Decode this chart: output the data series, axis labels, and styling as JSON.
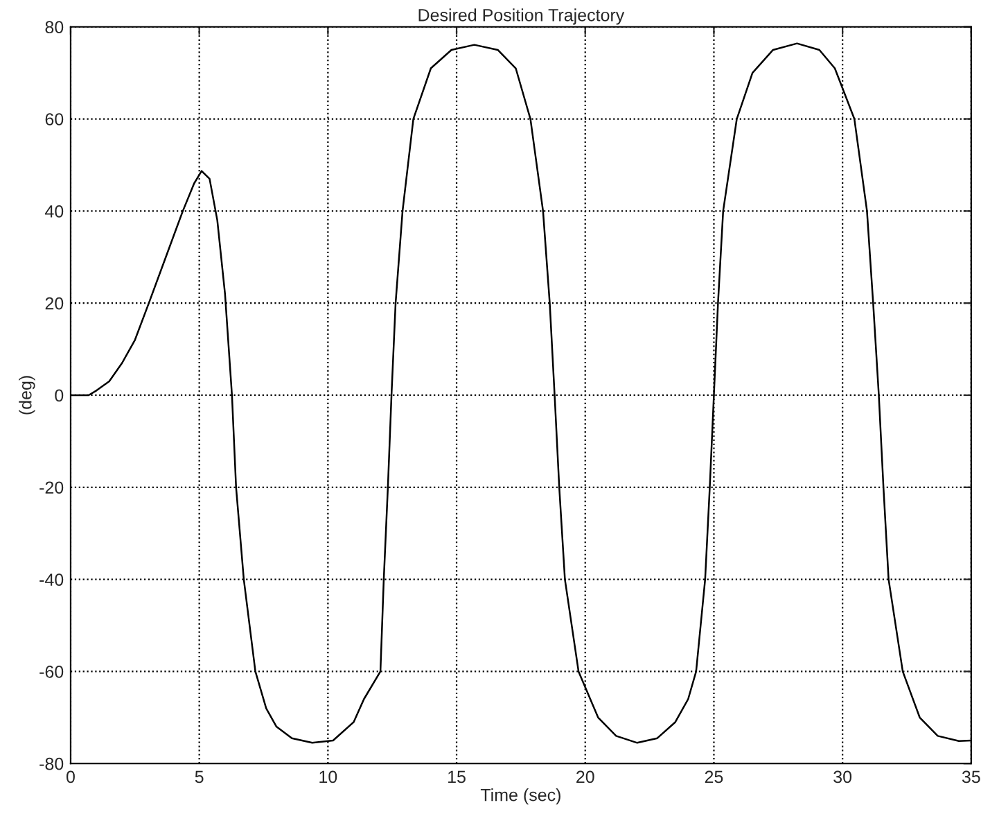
{
  "chart_data": {
    "type": "line",
    "title": "Desired Position Trajectory",
    "xlabel": "Time (sec)",
    "ylabel": "(deg)",
    "xlim": [
      0,
      35
    ],
    "xticks": [
      0,
      5,
      10,
      15,
      20,
      25,
      30,
      35
    ],
    "ylim": [
      -80,
      80
    ],
    "yticks": [
      -80,
      -60,
      -40,
      -20,
      0,
      20,
      40,
      60,
      80
    ],
    "grid": true,
    "line_style": "solid",
    "marker": "none",
    "series": [
      {
        "color": "#000000",
        "x": [
          0,
          0.7,
          1.0,
          1.5,
          2.0,
          2.5,
          3.04,
          3.7,
          4.36,
          4.8,
          5.09,
          5.4,
          5.7,
          6.0,
          6.27,
          6.43,
          6.73,
          7.18,
          7.6,
          8.0,
          8.6,
          9.39,
          10.2,
          11.0,
          11.4,
          12.04,
          12.17,
          12.33,
          12.47,
          12.63,
          12.9,
          13.32,
          14.0,
          14.8,
          15.69,
          16.6,
          17.3,
          17.87,
          18.36,
          18.62,
          18.81,
          18.99,
          19.21,
          19.74,
          20.5,
          21.2,
          22.02,
          22.8,
          23.5,
          24.0,
          24.31,
          24.66,
          24.84,
          25.0,
          25.16,
          25.36,
          25.89,
          26.5,
          27.3,
          28.23,
          29.1,
          29.7,
          30.46,
          30.95,
          31.19,
          31.41,
          31.59,
          31.79,
          32.34,
          33.0,
          33.7,
          34.52,
          35.0
        ],
        "values": [
          0,
          0,
          1,
          3,
          7,
          12,
          20,
          30,
          40,
          46,
          48.7,
          47,
          38,
          22,
          0,
          -20,
          -40,
          -60,
          -68,
          -72,
          -74.5,
          -75.5,
          -75,
          -71,
          -66,
          -60,
          -40,
          -20,
          0,
          20,
          40,
          60,
          71,
          75,
          76.1,
          75,
          71,
          60,
          40,
          20,
          0,
          -20,
          -40,
          -60,
          -70,
          -74,
          -75.5,
          -74.5,
          -71,
          -66,
          -60,
          -40,
          -20,
          0,
          20,
          40,
          60,
          70,
          75,
          76.4,
          75,
          71,
          60,
          40,
          20,
          0,
          -20,
          -40,
          -60,
          -70,
          -74,
          -75.1,
          -75
        ]
      }
    ]
  }
}
